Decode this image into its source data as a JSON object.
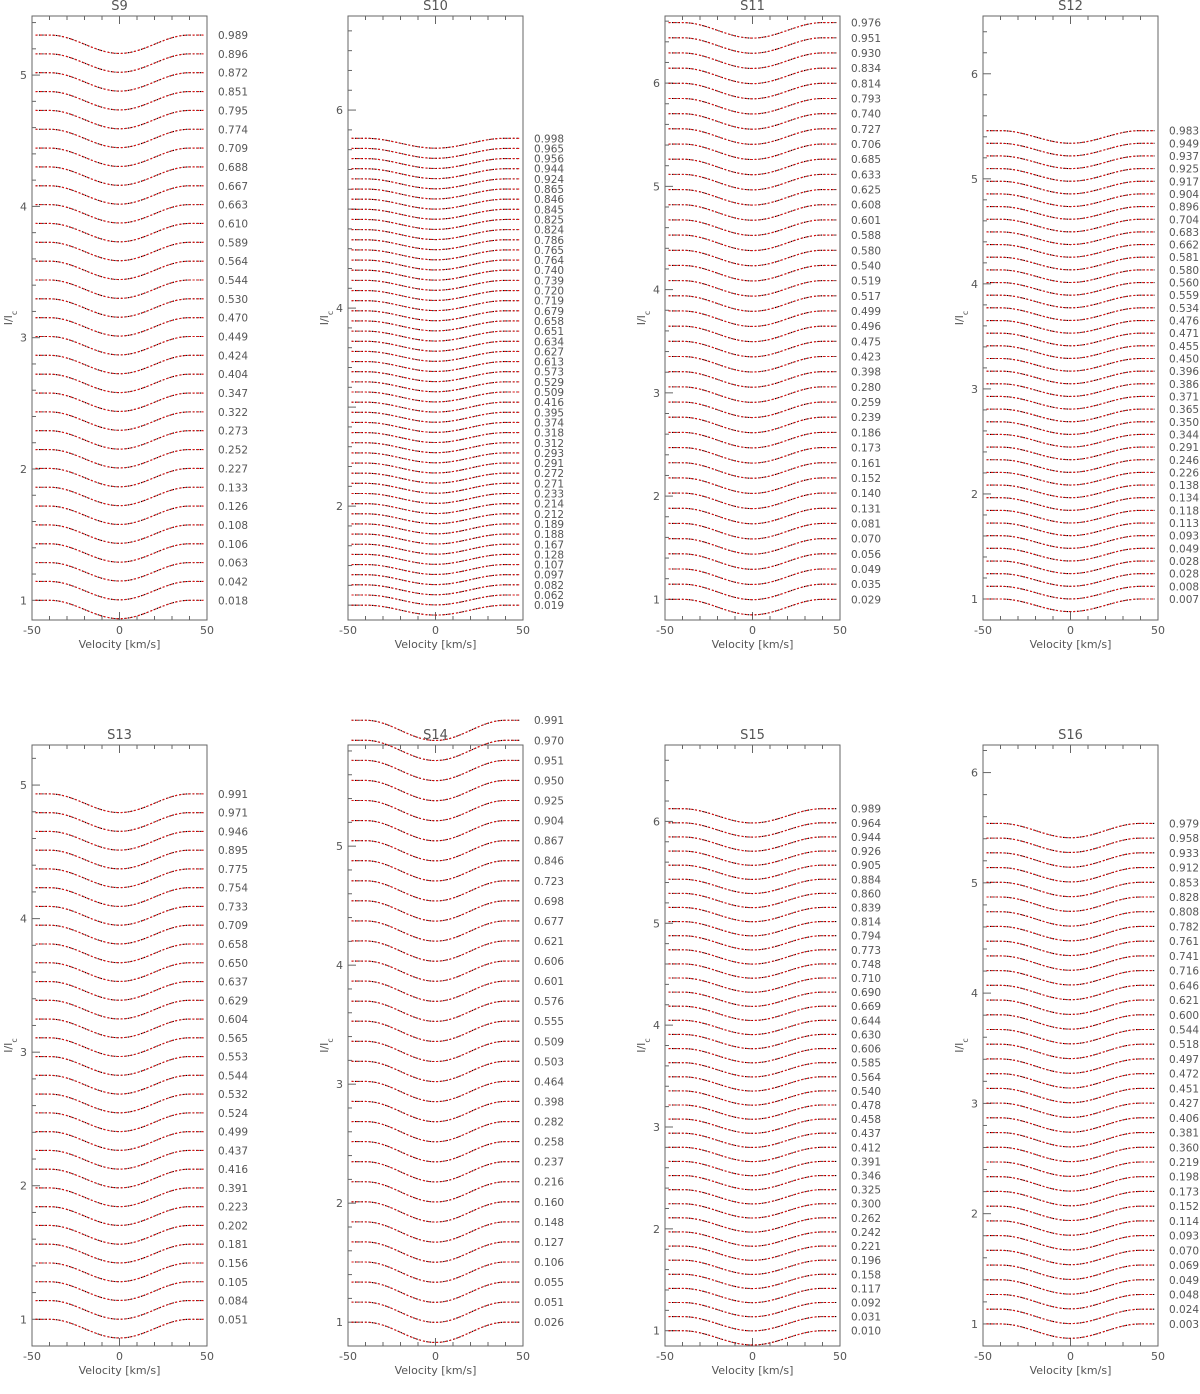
{
  "chart_data": [
    {
      "type": "line",
      "title": "S9",
      "xlabel": "Velocity [km/s]",
      "ylabel": "I/I",
      "ylabel_subscript": "c",
      "xlim": [
        -50,
        50
      ],
      "ylim": [
        0.85,
        5.45
      ],
      "x_ticks": [
        "-50",
        "0",
        "50"
      ],
      "y_ticks": [
        "1",
        "2",
        "3",
        "4",
        "5"
      ],
      "series_order": "bottom-to-top",
      "offset_start": 1.0,
      "offset_step": 0.1435,
      "line_depth": 0.14,
      "phases": [
        "0.018",
        "0.042",
        "0.063",
        "0.106",
        "0.108",
        "0.126",
        "0.133",
        "0.227",
        "0.252",
        "0.273",
        "0.322",
        "0.347",
        "0.404",
        "0.424",
        "0.449",
        "0.470",
        "0.530",
        "0.544",
        "0.564",
        "0.589",
        "0.610",
        "0.663",
        "0.667",
        "0.688",
        "0.709",
        "0.774",
        "0.795",
        "0.851",
        "0.872",
        "0.896",
        "0.989"
      ]
    },
    {
      "type": "line",
      "title": "S10",
      "xlabel": "Velocity [km/s]",
      "ylabel": "I/I",
      "ylabel_subscript": "c",
      "xlim": [
        -50,
        50
      ],
      "ylim": [
        0.85,
        6.95
      ],
      "x_ticks": [
        "-50",
        "0",
        "50"
      ],
      "y_ticks": [
        "2",
        "4",
        "6"
      ],
      "series_order": "bottom-to-top",
      "offset_start": 1.0,
      "offset_step": 0.1025,
      "line_depth": 0.1,
      "phases": [
        "0.019",
        "0.062",
        "0.082",
        "0.097",
        "0.107",
        "0.128",
        "0.167",
        "0.188",
        "0.189",
        "0.212",
        "0.214",
        "0.233",
        "0.271",
        "0.272",
        "0.291",
        "0.293",
        "0.312",
        "0.318",
        "0.374",
        "0.395",
        "0.416",
        "0.509",
        "0.529",
        "0.573",
        "0.613",
        "0.627",
        "0.634",
        "0.651",
        "0.658",
        "0.679",
        "0.719",
        "0.720",
        "0.739",
        "0.740",
        "0.764",
        "0.765",
        "0.786",
        "0.824",
        "0.825",
        "0.845",
        "0.846",
        "0.865",
        "0.924",
        "0.944",
        "0.956",
        "0.965",
        "0.998"
      ]
    },
    {
      "type": "line",
      "title": "S11",
      "xlabel": "Velocity [km/s]",
      "ylabel": "I/I",
      "ylabel_subscript": "c",
      "xlim": [
        -50,
        50
      ],
      "ylim": [
        0.8,
        6.65
      ],
      "x_ticks": [
        "-50",
        "0",
        "50"
      ],
      "y_ticks": [
        "1",
        "2",
        "3",
        "4",
        "5",
        "6"
      ],
      "series_order": "bottom-to-top",
      "offset_start": 1.0,
      "offset_step": 0.147,
      "line_depth": 0.15,
      "phases": [
        "0.029",
        "0.035",
        "0.049",
        "0.056",
        "0.070",
        "0.081",
        "0.131",
        "0.140",
        "0.152",
        "0.161",
        "0.173",
        "0.186",
        "0.239",
        "0.259",
        "0.280",
        "0.398",
        "0.423",
        "0.475",
        "0.496",
        "0.499",
        "0.517",
        "0.519",
        "0.540",
        "0.580",
        "0.588",
        "0.601",
        "0.608",
        "0.625",
        "0.633",
        "0.685",
        "0.706",
        "0.727",
        "0.740",
        "0.793",
        "0.814",
        "0.834",
        "0.930",
        "0.951",
        "0.976"
      ]
    },
    {
      "type": "line",
      "title": "S12",
      "xlabel": "Velocity [km/s]",
      "ylabel": "I/I",
      "ylabel_subscript": "c",
      "xlim": [
        -50,
        50
      ],
      "ylim": [
        0.8,
        6.55
      ],
      "x_ticks": [
        "-50",
        "0",
        "50"
      ],
      "y_ticks": [
        "1",
        "2",
        "3",
        "4",
        "5",
        "6"
      ],
      "series_order": "bottom-to-top",
      "offset_start": 1.0,
      "offset_step": 0.1205,
      "line_depth": 0.12,
      "phases": [
        "0.007",
        "0.008",
        "0.028",
        "0.028",
        "0.049",
        "0.093",
        "0.113",
        "0.118",
        "0.134",
        "0.138",
        "0.226",
        "0.246",
        "0.291",
        "0.344",
        "0.350",
        "0.365",
        "0.371",
        "0.386",
        "0.396",
        "0.450",
        "0.455",
        "0.471",
        "0.476",
        "0.534",
        "0.559",
        "0.560",
        "0.580",
        "0.581",
        "0.662",
        "0.683",
        "0.704",
        "0.896",
        "0.904",
        "0.917",
        "0.925",
        "0.937",
        "0.949",
        "0.983"
      ]
    },
    {
      "type": "line",
      "title": "S13",
      "xlabel": "Velocity [km/s]",
      "ylabel": "I/I",
      "ylabel_subscript": "c",
      "xlim": [
        -50,
        50
      ],
      "ylim": [
        0.8,
        5.3
      ],
      "x_ticks": [
        "-50",
        "0",
        "50"
      ],
      "y_ticks": [
        "1",
        "2",
        "3",
        "4",
        "5"
      ],
      "series_order": "bottom-to-top",
      "offset_start": 1.0,
      "offset_step": 0.1405,
      "line_depth": 0.14,
      "phases": [
        "0.051",
        "0.084",
        "0.105",
        "0.156",
        "0.181",
        "0.202",
        "0.223",
        "0.391",
        "0.416",
        "0.437",
        "0.499",
        "0.524",
        "0.532",
        "0.544",
        "0.553",
        "0.565",
        "0.604",
        "0.629",
        "0.637",
        "0.650",
        "0.658",
        "0.709",
        "0.733",
        "0.754",
        "0.775",
        "0.895",
        "0.946",
        "0.971",
        "0.991"
      ]
    },
    {
      "type": "line",
      "title": "S14",
      "xlabel": "Velocity [km/s]",
      "ylabel": "I/I",
      "ylabel_subscript": "c",
      "xlim": [
        -50,
        50
      ],
      "ylim": [
        0.8,
        5.85
      ],
      "x_ticks": [
        "-50",
        "0",
        "50"
      ],
      "y_ticks": [
        "1",
        "2",
        "3",
        "4",
        "5"
      ],
      "series_order": "bottom-to-top",
      "offset_start": 1.0,
      "offset_step": 0.1686,
      "line_depth": 0.17,
      "phases": [
        "0.026",
        "0.051",
        "0.055",
        "0.106",
        "0.127",
        "0.148",
        "0.160",
        "0.216",
        "0.237",
        "0.258",
        "0.282",
        "0.398",
        "0.464",
        "0.503",
        "0.509",
        "0.555",
        "0.576",
        "0.601",
        "0.606",
        "0.621",
        "0.677",
        "0.698",
        "0.723",
        "0.846",
        "0.867",
        "0.904",
        "0.925",
        "0.950",
        "0.951",
        "0.970",
        "0.991"
      ]
    },
    {
      "type": "line",
      "title": "S15",
      "xlabel": "Velocity [km/s]",
      "ylabel": "I/I",
      "ylabel_subscript": "c",
      "xlim": [
        -50,
        50
      ],
      "ylim": [
        0.85,
        6.75
      ],
      "x_ticks": [
        "-50",
        "0",
        "50"
      ],
      "y_ticks": [
        "1",
        "2",
        "3",
        "4",
        "5",
        "6"
      ],
      "series_order": "bottom-to-top",
      "offset_start": 1.0,
      "offset_step": 0.1385,
      "line_depth": 0.14,
      "phases": [
        "0.010",
        "0.031",
        "0.092",
        "0.117",
        "0.158",
        "0.196",
        "0.221",
        "0.242",
        "0.262",
        "0.300",
        "0.325",
        "0.346",
        "0.391",
        "0.412",
        "0.437",
        "0.458",
        "0.478",
        "0.540",
        "0.564",
        "0.585",
        "0.606",
        "0.630",
        "0.644",
        "0.669",
        "0.690",
        "0.710",
        "0.748",
        "0.773",
        "0.794",
        "0.814",
        "0.839",
        "0.860",
        "0.884",
        "0.905",
        "0.926",
        "0.944",
        "0.964",
        "0.989"
      ]
    },
    {
      "type": "line",
      "title": "S16",
      "xlabel": "Velocity [km/s]",
      "ylabel": "I/I",
      "ylabel_subscript": "c",
      "xlim": [
        -50,
        50
      ],
      "ylim": [
        0.8,
        6.25
      ],
      "x_ticks": [
        "-50",
        "0",
        "50"
      ],
      "y_ticks": [
        "1",
        "2",
        "3",
        "4",
        "5",
        "6"
      ],
      "series_order": "bottom-to-top",
      "offset_start": 1.0,
      "offset_step": 0.1335,
      "line_depth": 0.13,
      "phases": [
        "0.003",
        "0.024",
        "0.048",
        "0.049",
        "0.069",
        "0.070",
        "0.093",
        "0.114",
        "0.152",
        "0.173",
        "0.198",
        "0.219",
        "0.360",
        "0.381",
        "0.406",
        "0.427",
        "0.451",
        "0.472",
        "0.497",
        "0.518",
        "0.544",
        "0.600",
        "0.621",
        "0.646",
        "0.716",
        "0.741",
        "0.761",
        "0.782",
        "0.808",
        "0.828",
        "0.853",
        "0.912",
        "0.933",
        "0.958",
        "0.979"
      ]
    }
  ]
}
